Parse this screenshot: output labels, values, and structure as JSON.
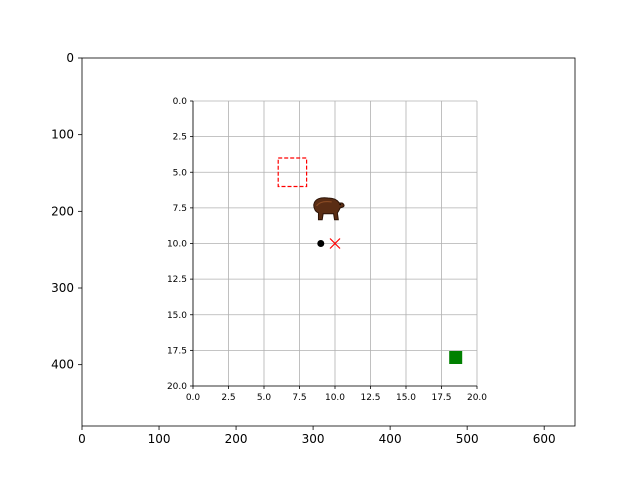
{
  "chart_data": [
    {
      "type": "scatter",
      "role": "outer-axes",
      "title": "",
      "xlabel": "",
      "ylabel": "",
      "xlim": [
        0,
        640
      ],
      "ylim": [
        480,
        0
      ],
      "y_inverted": true,
      "grid": false,
      "x_ticks": [
        0,
        100,
        200,
        300,
        400,
        500,
        600
      ],
      "y_ticks": [
        0,
        100,
        200,
        300,
        400
      ],
      "x_tick_labels": [
        "0",
        "100",
        "200",
        "300",
        "400",
        "500",
        "600"
      ],
      "y_tick_labels": [
        "0",
        "100",
        "200",
        "300",
        "400"
      ]
    },
    {
      "type": "scatter",
      "role": "inner-axes",
      "title": "",
      "xlabel": "",
      "ylabel": "",
      "xlim": [
        0,
        20
      ],
      "ylim": [
        20,
        0
      ],
      "y_inverted": true,
      "grid": true,
      "x_ticks": [
        0,
        2.5,
        5,
        7.5,
        10,
        12.5,
        15,
        17.5,
        20
      ],
      "y_ticks": [
        0,
        2.5,
        5,
        7.5,
        10,
        12.5,
        15,
        17.5,
        20
      ],
      "x_tick_labels": [
        "0.0",
        "2.5",
        "5.0",
        "7.5",
        "10.0",
        "12.5",
        "15.0",
        "17.5",
        "20.0"
      ],
      "y_tick_labels": [
        "0.0",
        "2.5",
        "5.0",
        "7.5",
        "10.0",
        "12.5",
        "15.0",
        "17.5",
        "20.0"
      ],
      "markers": [
        {
          "name": "black-dot",
          "shape": "circle",
          "x": 9.0,
          "y": 10.0,
          "color": "#000000"
        },
        {
          "name": "red-x",
          "shape": "x",
          "x": 10.0,
          "y": 10.0,
          "color": "#ff0000"
        },
        {
          "name": "green-square",
          "shape": "square",
          "x": 18.5,
          "y": 18.0,
          "color": "#008000"
        }
      ],
      "dashed_rectangle": {
        "x0": 6.0,
        "y0": 4.0,
        "x1": 8.0,
        "y1": 6.0,
        "color": "#ff0000"
      },
      "image_icon": {
        "name": "bear-icon",
        "x": 9.5,
        "y": 7.5,
        "width": 2.4,
        "height": 1.8
      }
    }
  ]
}
